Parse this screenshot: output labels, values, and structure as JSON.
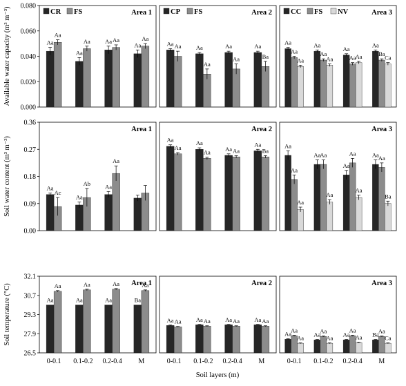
{
  "figure": {
    "x_axis_title": "Soil layers (m)",
    "categories": [
      "0-0.1",
      "0.1-0.2",
      "0.2-0.4",
      "M"
    ]
  },
  "colors": {
    "dark": "#262626",
    "mid": "#8c8c8c",
    "light": "#d9d9d9"
  },
  "chart_data": [
    {
      "type": "bar",
      "panel": "available-water-capacity-area-1",
      "title": "Area 1",
      "ylabel": "Available water capacity (m³ m⁻³)",
      "xlabel": "",
      "ylim": [
        0,
        0.08
      ],
      "yticks": [
        "0.000",
        "0.020",
        "0.040",
        "0.060",
        "0.080"
      ],
      "legend_position": "top-left",
      "categories": [
        "0-0.1",
        "0.1-0.2",
        "0.2-0.4",
        "M"
      ],
      "series": [
        {
          "name": "CR",
          "color": "dark",
          "values": [
            0.044,
            0.036,
            0.045,
            0.042
          ],
          "errors": [
            0.003,
            0.003,
            0.003,
            0.003
          ],
          "labels": [
            "Aa",
            "Aa",
            "Aa",
            "Aa"
          ]
        },
        {
          "name": "FS",
          "color": "mid",
          "values": [
            0.051,
            0.046,
            0.047,
            0.048
          ],
          "errors": [
            0.002,
            0.002,
            0.002,
            0.002
          ],
          "labels": [
            "Aa",
            "Aa",
            "Aa",
            "Aa"
          ]
        }
      ]
    },
    {
      "type": "bar",
      "panel": "available-water-capacity-area-2",
      "title": "Area 2",
      "ylim": [
        0,
        0.08
      ],
      "legend_position": "top-left",
      "categories": [
        "0-0.1",
        "0.1-0.2",
        "0.2-0.4",
        "M"
      ],
      "series": [
        {
          "name": "CP",
          "color": "dark",
          "values": [
            0.045,
            0.042,
            0.043,
            0.043
          ],
          "errors": [
            0.001,
            0.001,
            0.001,
            0.001
          ],
          "labels": [
            "Aa",
            "Aa",
            "Aa",
            "Aa"
          ]
        },
        {
          "name": "FS",
          "color": "mid",
          "values": [
            0.04,
            0.026,
            0.03,
            0.032
          ],
          "errors": [
            0.004,
            0.004,
            0.004,
            0.004
          ],
          "labels": [
            "Aa",
            "Aa",
            "Aa",
            "Ba"
          ]
        }
      ]
    },
    {
      "type": "bar",
      "panel": "available-water-capacity-area-3",
      "title": "Area 3",
      "ylim": [
        0,
        0.08
      ],
      "legend_position": "top-left",
      "categories": [
        "0-0.1",
        "0.1-0.2",
        "0.2-0.4",
        "M"
      ],
      "series": [
        {
          "name": "CC",
          "color": "dark",
          "values": [
            0.046,
            0.044,
            0.041,
            0.044
          ],
          "errors": [
            0.001,
            0.001,
            0.001,
            0.001
          ],
          "labels": [
            "Aa",
            "Aa",
            "Aa",
            "Aa"
          ]
        },
        {
          "name": "FS",
          "color": "mid",
          "values": [
            0.039,
            0.037,
            0.034,
            0.037
          ],
          "errors": [
            0.001,
            0.001,
            0.001,
            0.001
          ],
          "labels": [
            "Aa",
            "Aa",
            "Aa",
            "Ba"
          ]
        },
        {
          "name": "NV",
          "color": "light",
          "values": [
            0.032,
            0.033,
            0.035,
            0.034
          ],
          "errors": [
            0.001,
            0.001,
            0.001,
            0.001
          ],
          "labels": [
            "Aa",
            "Aa",
            "Aa",
            "Ca"
          ]
        }
      ]
    },
    {
      "type": "bar",
      "panel": "soil-water-content-area-1",
      "title": "Area 1",
      "ylabel": "Soil water content (m³ m⁻³)",
      "ylim": [
        0,
        0.36
      ],
      "yticks": [
        "0.00",
        "0.09",
        "0.18",
        "0.27",
        "0.36"
      ],
      "categories": [
        "0-0.1",
        "0.1-0.2",
        "0.2-0.4",
        "M"
      ],
      "series": [
        {
          "name": "CR",
          "color": "dark",
          "values": [
            0.12,
            0.085,
            0.12,
            0.108
          ],
          "errors": [
            0.005,
            0.01,
            0.01,
            0.01
          ],
          "labels": [
            "Aa",
            "Aa",
            "Aa",
            ""
          ]
        },
        {
          "name": "FS",
          "color": "mid",
          "values": [
            0.08,
            0.11,
            0.19,
            0.125
          ],
          "errors": [
            0.03,
            0.03,
            0.025,
            0.025
          ],
          "labels": [
            "Ac",
            "Ab",
            "Aa",
            ""
          ]
        }
      ]
    },
    {
      "type": "bar",
      "panel": "soil-water-content-area-2",
      "title": "Area 2",
      "ylim": [
        0,
        0.36
      ],
      "categories": [
        "0-0.1",
        "0.1-0.2",
        "0.2-0.4",
        "M"
      ],
      "series": [
        {
          "name": "CP",
          "color": "dark",
          "values": [
            0.28,
            0.27,
            0.25,
            0.265
          ],
          "errors": [
            0.005,
            0.005,
            0.005,
            0.005
          ],
          "labels": [
            "Aa",
            "Aa",
            "Aa",
            "Aa"
          ]
        },
        {
          "name": "FS",
          "color": "mid",
          "values": [
            0.255,
            0.24,
            0.245,
            0.245
          ],
          "errors": [
            0.004,
            0.004,
            0.004,
            0.004
          ],
          "labels": [
            "Aa",
            "Aa",
            "Aa",
            "Ba"
          ]
        }
      ]
    },
    {
      "type": "bar",
      "panel": "soil-water-content-area-3",
      "title": "Area 3",
      "ylim": [
        0,
        0.36
      ],
      "categories": [
        "0-0.1",
        "0.1-0.2",
        "0.2-0.4",
        "M"
      ],
      "series": [
        {
          "name": "CC",
          "color": "dark",
          "values": [
            0.25,
            0.22,
            0.185,
            0.22
          ],
          "errors": [
            0.015,
            0.015,
            0.015,
            0.015
          ],
          "labels": [
            "Aa",
            "Aa",
            "Aa",
            "Aa"
          ]
        },
        {
          "name": "FS",
          "color": "mid",
          "values": [
            0.17,
            0.22,
            0.225,
            0.21
          ],
          "errors": [
            0.015,
            0.015,
            0.015,
            0.015
          ],
          "labels": [
            "Aa",
            "Aa",
            "Aa",
            "Aa"
          ]
        },
        {
          "name": "NV",
          "color": "light",
          "values": [
            0.07,
            0.095,
            0.11,
            0.09
          ],
          "errors": [
            0.008,
            0.008,
            0.008,
            0.008
          ],
          "labels": [
            "Aa",
            "Aa",
            "Aa",
            "Ba"
          ]
        }
      ]
    },
    {
      "type": "bar",
      "panel": "soil-temperature-area-1",
      "title": "Area 1",
      "ylabel": "Soil temperature (°C)",
      "ylim": [
        26.5,
        32.1
      ],
      "yticks": [
        "26.5",
        "27.9",
        "29.3",
        "30.7",
        "32.1"
      ],
      "categories": [
        "0-0.1",
        "0.1-0.2",
        "0.2-0.4",
        "M"
      ],
      "series": [
        {
          "name": "CR",
          "color": "dark",
          "values": [
            30.0,
            30.0,
            30.0,
            30.0
          ],
          "errors": [
            0,
            0,
            0,
            0
          ],
          "labels": [
            "Aa",
            "Aa",
            "Aa",
            "Ba"
          ]
        },
        {
          "name": "FS",
          "color": "mid",
          "values": [
            31.0,
            31.1,
            31.15,
            31.05
          ],
          "errors": [
            0.05,
            0.05,
            0.05,
            0.05
          ],
          "labels": [
            "Aa",
            "Aa",
            "Aa",
            "Aa"
          ]
        }
      ]
    },
    {
      "type": "bar",
      "panel": "soil-temperature-area-2",
      "title": "Area 2",
      "ylim": [
        26.5,
        32.1
      ],
      "categories": [
        "0-0.1",
        "0.1-0.2",
        "0.2-0.4",
        "M"
      ],
      "series": [
        {
          "name": "CP",
          "color": "dark",
          "values": [
            28.5,
            28.55,
            28.55,
            28.55
          ],
          "errors": [
            0.03,
            0.03,
            0.03,
            0.03
          ],
          "labels": [
            "Aa",
            "Aa",
            "Aa",
            "Aa"
          ]
        },
        {
          "name": "FS",
          "color": "mid",
          "values": [
            28.4,
            28.45,
            28.45,
            28.45
          ],
          "errors": [
            0.03,
            0.03,
            0.03,
            0.03
          ],
          "labels": [
            "Aa",
            "Aa",
            "Aa",
            "Aa"
          ]
        }
      ]
    },
    {
      "type": "bar",
      "panel": "soil-temperature-area-3",
      "title": "Area 3",
      "ylim": [
        26.5,
        32.1
      ],
      "categories": [
        "0-0.1",
        "0.1-0.2",
        "0.2-0.4",
        "M"
      ],
      "series": [
        {
          "name": "CC",
          "color": "dark",
          "values": [
            27.5,
            27.45,
            27.45,
            27.45
          ],
          "errors": [
            0.03,
            0.03,
            0.03,
            0.03
          ],
          "labels": [
            "Aa",
            "Aa",
            "Aa",
            "Ba"
          ]
        },
        {
          "name": "FS",
          "color": "mid",
          "values": [
            27.75,
            27.7,
            27.75,
            27.7
          ],
          "errors": [
            0.03,
            0.03,
            0.03,
            0.03
          ],
          "labels": [
            "Aa",
            "Aa",
            "Aa",
            "Aa"
          ]
        },
        {
          "name": "NV",
          "color": "light",
          "values": [
            27.2,
            27.2,
            27.25,
            27.2
          ],
          "errors": [
            0.03,
            0.03,
            0.03,
            0.03
          ],
          "labels": [
            "Aa",
            "Aa",
            "Aa",
            "Ca"
          ]
        }
      ]
    }
  ]
}
